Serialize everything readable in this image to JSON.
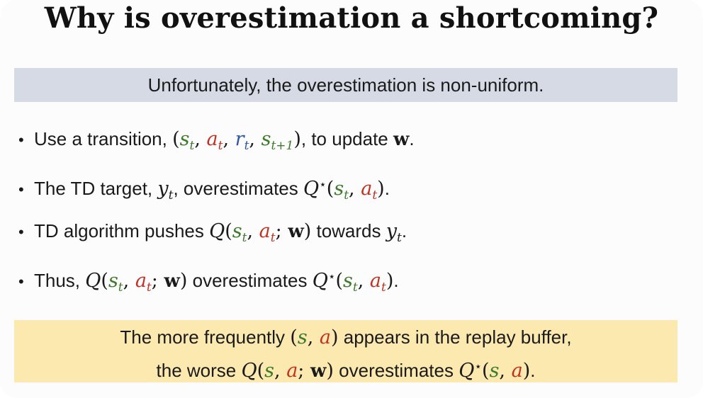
{
  "slide": {
    "title": "Why is overestimation a shortcoming?",
    "banner": "Unfortunately, the overestimation is non-uniform.",
    "bullet_marker": "•",
    "bullets": [
      {
        "pre": "Use a transition, ",
        "open": "(",
        "s": "s",
        "s_sub": "t",
        "comma1": ", ",
        "a": "a",
        "a_sub": "t",
        "comma2": ", ",
        "r": "r",
        "r_sub": "t",
        "comma3": ", ",
        "s2": "s",
        "s2_sub": "t+1",
        "close": ")",
        "mid": ", to update ",
        "w": "w",
        "end": "."
      },
      {
        "pre": "The TD target, ",
        "y": "y",
        "y_sub": "t",
        "mid": ", overestimates ",
        "Q": "Q",
        "star": "⋆",
        "open": "(",
        "s": "s",
        "s_sub": "t",
        "comma": ", ",
        "a": "a",
        "a_sub": "t",
        "close": ")",
        "end": "."
      },
      {
        "pre": "TD algorithm pushes ",
        "Q": "Q",
        "open": "(",
        "s": "s",
        "s_sub": "t",
        "comma": ", ",
        "a": "a",
        "a_sub": "t",
        "semi": "; ",
        "w": "w",
        "close": ")",
        "mid": " towards ",
        "y": "y",
        "y_sub": "t",
        "end": "."
      },
      {
        "pre": "Thus, ",
        "Q": "Q",
        "open": "(",
        "s": "s",
        "s_sub": "t",
        "comma": ", ",
        "a": "a",
        "a_sub": "t",
        "semi": "; ",
        "w": "w",
        "close": ")",
        "mid": " overestimates ",
        "Q2": "Q",
        "star": "⋆",
        "open2": "(",
        "s2": "s",
        "s2_sub": "t",
        "comma2": ", ",
        "a2": "a",
        "a2_sub": "t",
        "close2": ")",
        "end": "."
      }
    ],
    "callout": {
      "line1": {
        "pre": "The more frequently ",
        "open": "(",
        "s": "s",
        "comma": ", ",
        "a": "a",
        "close": ")",
        "post": " appears in the replay buffer,"
      },
      "line2": {
        "pre": "the worse ",
        "Q": "Q",
        "open": "(",
        "s": "s",
        "comma": ", ",
        "a": "a",
        "semi": "; ",
        "w": "w",
        "close": ")",
        "mid": " overestimates ",
        "Q2": "Q",
        "star": "⋆",
        "open2": "(",
        "s2": "s",
        "comma2": ", ",
        "a2": "a",
        "close2": ")",
        "end": "."
      }
    },
    "colors": {
      "state": "#3d7a2c",
      "action": "#c23020",
      "reward": "#2f55a6",
      "banner_bg": "#d6dae4",
      "callout_bg": "#fbe9b0"
    }
  }
}
